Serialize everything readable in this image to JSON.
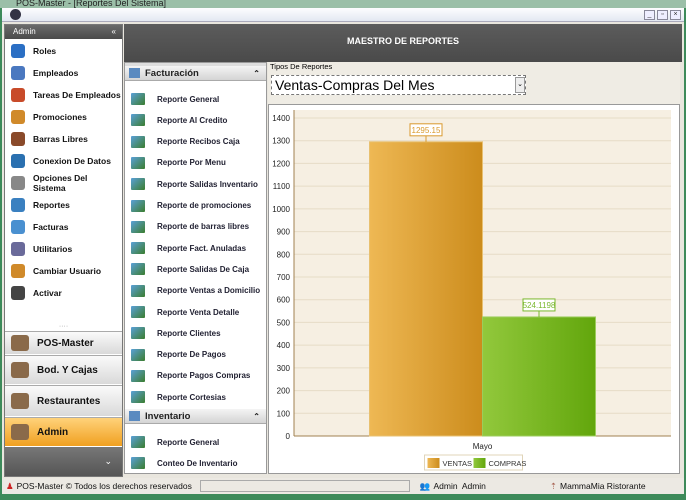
{
  "window": {
    "title": "POS-Master - [Reportes Del Sistema]"
  },
  "sidebar": {
    "header": "Admin",
    "collapse": "«",
    "items": [
      {
        "label": "Roles",
        "icon": "user-role-icon",
        "color": "#2b6fc4"
      },
      {
        "label": "Empleados",
        "icon": "employees-icon",
        "color": "#4a78c0"
      },
      {
        "label": "Tareas De Empleados",
        "icon": "calendar-icon",
        "color": "#c84b2a"
      },
      {
        "label": "Promociones",
        "icon": "calendar-promo-icon",
        "color": "#d08a2a"
      },
      {
        "label": "Barras Libres",
        "icon": "bar-icon",
        "color": "#8a4a2a"
      },
      {
        "label": "Conexion De Datos",
        "icon": "globe-icon",
        "color": "#2a70b0"
      },
      {
        "label": "Opciones Del Sistema",
        "icon": "gears-icon",
        "color": "#888888"
      },
      {
        "label": "Reportes",
        "icon": "chart-icon",
        "color": "#3a80c0"
      },
      {
        "label": "Facturas",
        "icon": "invoice-chart-icon",
        "color": "#4a90d0"
      },
      {
        "label": "Utilitarios",
        "icon": "tools-icon",
        "color": "#6a6a9a"
      },
      {
        "label": "Cambiar Usuario",
        "icon": "change-user-icon",
        "color": "#d08a2a"
      },
      {
        "label": "Activar",
        "icon": "activate-icon",
        "color": "#444444"
      }
    ],
    "nav": [
      {
        "label": "POS-Master",
        "icon": "pos-icon"
      },
      {
        "label": "Bod. Y Cajas",
        "icon": "warehouse-icon"
      },
      {
        "label": "Restaurantes",
        "icon": "restaurant-icon"
      },
      {
        "label": "Admin",
        "icon": "admin-icon",
        "active": true
      }
    ]
  },
  "header": {
    "title": "MAESTRO DE REPORTES"
  },
  "groups": [
    {
      "label": "Facturación",
      "items": [
        "Reporte General",
        "Reporte Al Credito",
        "Reporte Recibos Caja",
        "Reporte Por Menu",
        "Reporte Salidas Inventario",
        "Reporte de promociones",
        "Reporte de barras libres",
        "Reporte Fact. Anuladas",
        "Reporte Salidas De Caja",
        "Reporte Ventas a Domicilio",
        "Reporte Venta Detalle",
        "Reporte Clientes",
        "Reporte De Pagos",
        "Reporte Pagos Compras",
        "Reporte Cortesias"
      ]
    },
    {
      "label": "Inventario",
      "items": [
        "Reporte General",
        "Conteo De Inventario"
      ]
    }
  ],
  "report_type": {
    "label": "Tipos De Reportes",
    "value": "Ventas-Compras Del Mes"
  },
  "chart_data": {
    "type": "bar",
    "categories": [
      "Mayo"
    ],
    "series": [
      {
        "name": "VENTAS",
        "values": [
          1295.15
        ],
        "color": "#d99a2e"
      },
      {
        "name": "COMPRAS",
        "values": [
          524.1198
        ],
        "color": "#7ab82e"
      }
    ],
    "data_labels": [
      "1295.15",
      "524.1198"
    ],
    "ylim": [
      0,
      1400
    ],
    "yticks": [
      0,
      100,
      200,
      300,
      400,
      500,
      600,
      700,
      800,
      900,
      1000,
      1100,
      1200,
      1300,
      1400
    ],
    "grid": true,
    "legend": "bottom"
  },
  "status": {
    "copyright": "POS-Master © Todos los derechos reservados",
    "user": "Admin  Admin",
    "restaurant": "MammaMia Ristorante"
  }
}
